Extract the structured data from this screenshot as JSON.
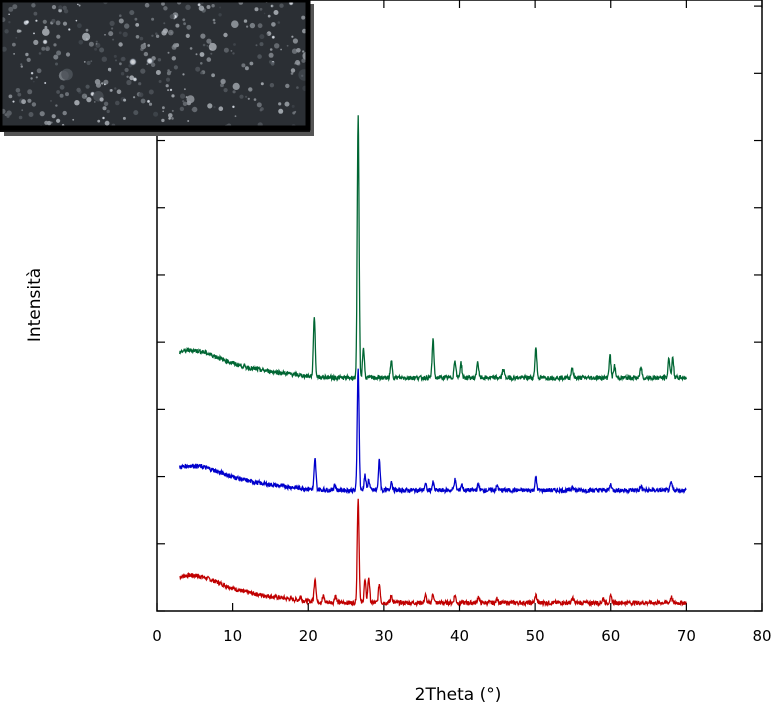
{
  "chart_data": {
    "type": "line",
    "title": "",
    "xlabel": "2Theta (°)",
    "ylabel": "Intensità",
    "xlim": [
      0,
      80
    ],
    "xticks": [
      0,
      10,
      20,
      30,
      40,
      50,
      60,
      70,
      80
    ],
    "y_tick_count": 10,
    "y_scale": "arbitrary units, stacked traces, no tick labels",
    "grid": false,
    "legend": "none",
    "inset": "polarized-light micrograph, top-left",
    "series": [
      {
        "color": "#c00000",
        "offset": 0,
        "peaks": [
          [
            3,
            20
          ],
          [
            5,
            14
          ],
          [
            9,
            10
          ],
          [
            15,
            6
          ],
          [
            19,
            5
          ],
          [
            20.9,
            32
          ],
          [
            22,
            8
          ],
          [
            23.6,
            10
          ],
          [
            26.6,
            140
          ],
          [
            27.5,
            30
          ],
          [
            28,
            34
          ],
          [
            29.4,
            25
          ],
          [
            31,
            10
          ],
          [
            35.5,
            10
          ],
          [
            36.5,
            12
          ],
          [
            39.4,
            10
          ],
          [
            42.5,
            8
          ],
          [
            45,
            6
          ],
          [
            50.1,
            10
          ],
          [
            55,
            6
          ],
          [
            59,
            6
          ],
          [
            60,
            8
          ],
          [
            68,
            8
          ]
        ]
      },
      {
        "color": "#0000cc",
        "offset": 150,
        "peaks": [
          [
            3,
            18
          ],
          [
            5,
            12
          ],
          [
            9,
            10
          ],
          [
            15,
            5
          ],
          [
            20.9,
            40
          ],
          [
            23.5,
            8
          ],
          [
            26.6,
            165
          ],
          [
            27.5,
            20
          ],
          [
            28,
            14
          ],
          [
            29.4,
            40
          ],
          [
            31,
            12
          ],
          [
            35.5,
            8
          ],
          [
            36.5,
            10
          ],
          [
            39.4,
            14
          ],
          [
            40.3,
            8
          ],
          [
            42.5,
            8
          ],
          [
            45,
            6
          ],
          [
            50.1,
            16
          ],
          [
            55,
            6
          ],
          [
            60,
            8
          ],
          [
            64,
            5
          ],
          [
            68,
            10
          ]
        ]
      },
      {
        "color": "#006633",
        "offset": 300,
        "peaks": [
          [
            3,
            20
          ],
          [
            5,
            14
          ],
          [
            9,
            10
          ],
          [
            15,
            6
          ],
          [
            20.8,
            80
          ],
          [
            26.6,
            350
          ],
          [
            27.3,
            40
          ],
          [
            31,
            22
          ],
          [
            36.5,
            50
          ],
          [
            39.4,
            24
          ],
          [
            40.2,
            20
          ],
          [
            42.4,
            22
          ],
          [
            45.8,
            12
          ],
          [
            50.1,
            40
          ],
          [
            54.9,
            14
          ],
          [
            59.9,
            30
          ],
          [
            60.5,
            16
          ],
          [
            64,
            14
          ],
          [
            67.7,
            26
          ],
          [
            68.2,
            26
          ]
        ]
      }
    ]
  }
}
